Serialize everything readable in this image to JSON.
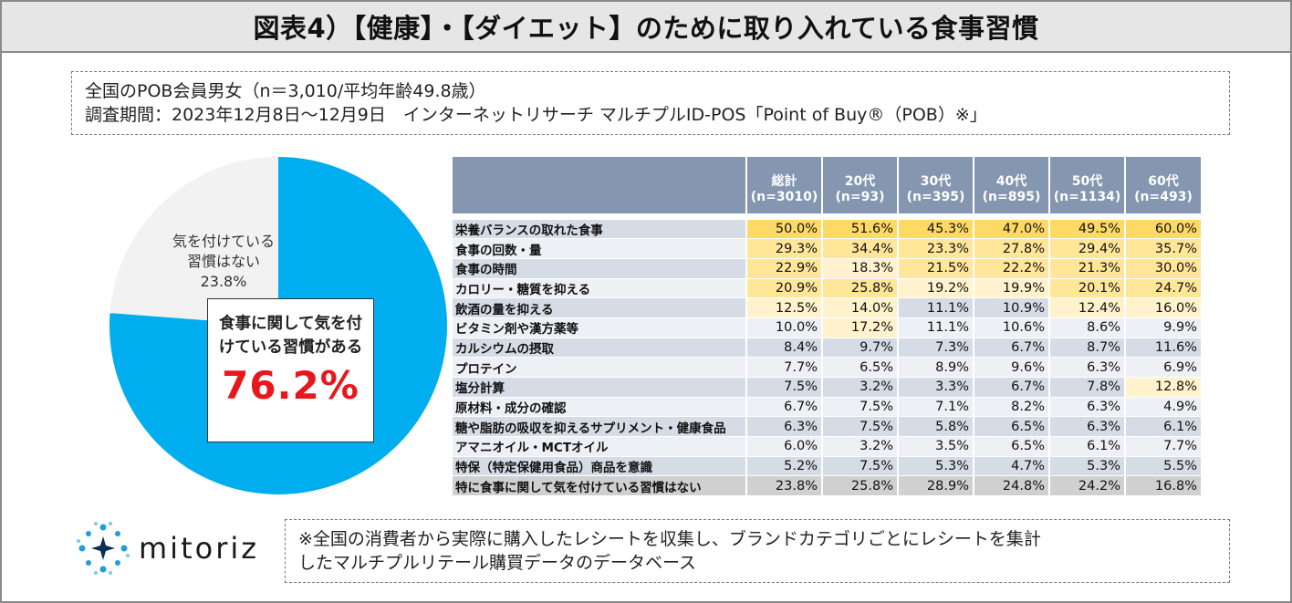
{
  "title": "図表4）【健康】・【ダイエット】のために取り入れている食事習慣",
  "info": {
    "line1": "全国のPOB会員男女（n＝3,010/平均年齢49.8歳）",
    "line2": "調査期間：2023年12月8日～12月9日　インターネットリサーチ マルチプルID-POS「Point of Buy®（POB）※」"
  },
  "colors": {
    "pie_main": "#00aeef",
    "pie_rest": "#f2f2f2",
    "header": "#8496b0",
    "highlight_strong": "#ffd966",
    "highlight_mid": "#ffe699",
    "highlight_light": "#fff2cc",
    "accent_red": "#e8171d"
  },
  "chart_data": [
    {
      "type": "pie",
      "title": "",
      "slices": [
        {
          "label": "食事に関して気を付けている習慣がある",
          "value": 76.2,
          "display": "76.2%",
          "label_line1": "食事に関して気を付",
          "label_line2": "けている習慣がある"
        },
        {
          "label": "気を付けている習慣はない",
          "value": 23.8,
          "display": "23.8%",
          "label_line1": "気を付けている",
          "label_line2": "習慣はない"
        }
      ]
    },
    {
      "type": "table",
      "columns": [
        {
          "line1": "総計",
          "line2": "(n=3010)"
        },
        {
          "line1": "20代",
          "line2": "(n=93)"
        },
        {
          "line1": "30代",
          "line2": "(n=395)"
        },
        {
          "line1": "40代",
          "line2": "(n=895)"
        },
        {
          "line1": "50代",
          "line2": "(n=1134)"
        },
        {
          "line1": "60代",
          "line2": "(n=493)"
        }
      ],
      "rows": [
        {
          "label": "栄養バランスの取れた食事",
          "values": [
            "50.0%",
            "51.6%",
            "45.3%",
            "47.0%",
            "49.5%",
            "60.0%"
          ]
        },
        {
          "label": "食事の回数・量",
          "values": [
            "29.3%",
            "34.4%",
            "23.3%",
            "27.8%",
            "29.4%",
            "35.7%"
          ]
        },
        {
          "label": "食事の時間",
          "values": [
            "22.9%",
            "18.3%",
            "21.5%",
            "22.2%",
            "21.3%",
            "30.0%"
          ]
        },
        {
          "label": "カロリー・糖質を抑える",
          "values": [
            "20.9%",
            "25.8%",
            "19.2%",
            "19.9%",
            "20.1%",
            "24.7%"
          ]
        },
        {
          "label": "飲酒の量を抑える",
          "values": [
            "12.5%",
            "14.0%",
            "11.1%",
            "10.9%",
            "12.4%",
            "16.0%"
          ]
        },
        {
          "label": "ビタミン剤や漢方薬等",
          "values": [
            "10.0%",
            "17.2%",
            "11.1%",
            "10.6%",
            "8.6%",
            "9.9%"
          ]
        },
        {
          "label": "カルシウムの摂取",
          "values": [
            "8.4%",
            "9.7%",
            "7.3%",
            "6.7%",
            "8.7%",
            "11.6%"
          ]
        },
        {
          "label": "プロテイン",
          "values": [
            "7.7%",
            "6.5%",
            "8.9%",
            "9.6%",
            "6.3%",
            "6.9%"
          ]
        },
        {
          "label": "塩分計算",
          "values": [
            "7.5%",
            "3.2%",
            "3.3%",
            "6.7%",
            "7.8%",
            "12.8%"
          ]
        },
        {
          "label": "原材料・成分の確認",
          "values": [
            "6.7%",
            "7.5%",
            "7.1%",
            "8.2%",
            "6.3%",
            "4.9%"
          ]
        },
        {
          "label": "糖や脂肪の吸収を抑えるサプリメント・健康食品",
          "values": [
            "6.3%",
            "7.5%",
            "5.8%",
            "6.5%",
            "6.3%",
            "6.1%"
          ]
        },
        {
          "label": "アマニオイル・MCTオイル",
          "values": [
            "6.0%",
            "3.2%",
            "3.5%",
            "6.5%",
            "6.1%",
            "7.7%"
          ]
        },
        {
          "label": "特保（特定保健用食品）商品を意識",
          "values": [
            "5.2%",
            "7.5%",
            "5.3%",
            "4.7%",
            "5.3%",
            "5.5%"
          ]
        },
        {
          "label": "特に食事に関して気を付けている習慣はない",
          "values": [
            "23.8%",
            "25.8%",
            "28.9%",
            "24.8%",
            "24.2%",
            "16.8%"
          ]
        }
      ]
    }
  ],
  "logo": {
    "text": "mitoriz",
    "icon": "mitoriz-logo-icon"
  },
  "note": {
    "line1": "※全国の消費者から実際に購入したレシートを収集し、ブランドカテゴリごとにレシートを集計",
    "line2": "したマルチプルリテール購買データのデータベース"
  }
}
